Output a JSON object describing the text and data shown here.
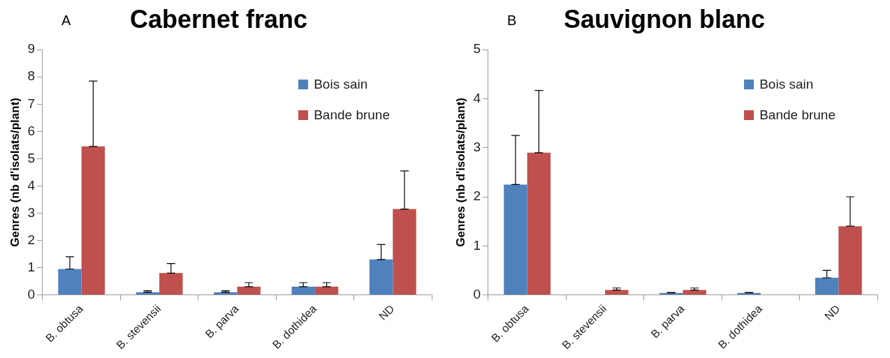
{
  "chart_data": [
    {
      "type": "bar",
      "title": "Cabernet franc",
      "ylabel": "Genres (nb d'isolats/plant)",
      "annotations": [
        "A"
      ],
      "categories": [
        "B. obtusa",
        "B. stevensii",
        "B. parva",
        "B. dothidea",
        "ND"
      ],
      "ylim": [
        0,
        9
      ],
      "yticks": [
        0,
        1,
        2,
        3,
        4,
        5,
        6,
        7,
        8,
        9
      ],
      "grid": false,
      "legend": "top right",
      "series": [
        {
          "name": "Bois sain",
          "color": "#4f81bd",
          "values": [
            0.95,
            0.1,
            0.1,
            0.3,
            1.3
          ],
          "errors": [
            [
              0.95,
              1.4
            ],
            [
              0.1,
              0.15
            ],
            [
              0.1,
              0.15
            ],
            [
              0.3,
              0.45
            ],
            [
              1.3,
              1.85
            ]
          ]
        },
        {
          "name": "Bande brune",
          "color": "#c0504d",
          "values": [
            5.45,
            0.8,
            0.3,
            0.3,
            3.15
          ],
          "errors": [
            [
              5.45,
              7.85
            ],
            [
              0.8,
              1.15
            ],
            [
              0.3,
              0.45
            ],
            [
              0.3,
              0.45
            ],
            [
              3.15,
              4.55
            ]
          ]
        }
      ]
    },
    {
      "type": "bar",
      "title": "Sauvignon blanc",
      "ylabel": "Genres (nb d'isolats/plant)",
      "annotations": [
        "B"
      ],
      "categories": [
        "B. obtusa",
        "B. stevensii",
        "B. parva",
        "B. dothidea",
        "ND"
      ],
      "ylim": [
        0,
        5
      ],
      "yticks": [
        0,
        1,
        2,
        3,
        4,
        5
      ],
      "grid": false,
      "legend": "top right",
      "series": [
        {
          "name": "Bois sain",
          "color": "#4f81bd",
          "values": [
            2.25,
            0,
            0.04,
            0.04,
            0.35
          ],
          "errors": [
            [
              2.25,
              3.25
            ],
            null,
            [
              0.04,
              0.05
            ],
            [
              0.04,
              0.05
            ],
            [
              0.35,
              0.5
            ]
          ]
        },
        {
          "name": "Bande brune",
          "color": "#c0504d",
          "values": [
            2.9,
            0.1,
            0.1,
            0,
            1.4
          ],
          "errors": [
            [
              2.9,
              4.17
            ],
            [
              0.1,
              0.14
            ],
            [
              0.1,
              0.14
            ],
            null,
            [
              1.4,
              2
            ]
          ]
        }
      ]
    }
  ]
}
